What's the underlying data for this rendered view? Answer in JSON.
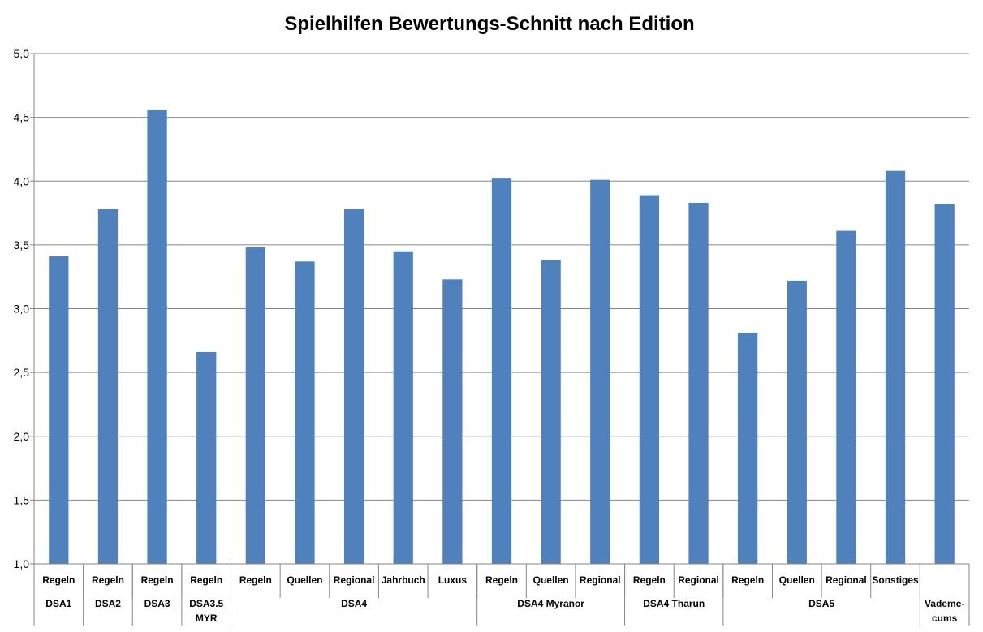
{
  "chart_data": {
    "type": "bar",
    "title": "Spielhilfen Bewertungs-Schnitt nach Edition",
    "xlabel": "",
    "ylabel": "",
    "ylim": [
      1.0,
      5.0
    ],
    "yticks": [
      "1,0",
      "1,5",
      "2,0",
      "2,5",
      "3,0",
      "3,5",
      "4,0",
      "4,5",
      "5,0"
    ],
    "grid": true,
    "legend": "none",
    "bar_color": "#4f81bd",
    "categories": [
      "Regeln",
      "Regeln",
      "Regeln",
      "Regeln",
      "Regeln",
      "Quellen",
      "Regional",
      "Jahrbuch",
      "Luxus",
      "Regeln",
      "Quellen",
      "Regional",
      "Regeln",
      "Regional",
      "Regeln",
      "Quellen",
      "Regional",
      "Sonstiges",
      ""
    ],
    "values": [
      3.41,
      3.78,
      4.56,
      2.66,
      3.48,
      3.37,
      3.78,
      3.45,
      3.23,
      4.02,
      3.38,
      4.01,
      3.89,
      3.83,
      2.81,
      3.22,
      3.61,
      4.08,
      3.82
    ],
    "groups": [
      {
        "label": [
          "DSA1"
        ],
        "span": 1
      },
      {
        "label": [
          "DSA2"
        ],
        "span": 1
      },
      {
        "label": [
          "DSA3"
        ],
        "span": 1
      },
      {
        "label": [
          "DSA3.5",
          "MYR"
        ],
        "span": 1
      },
      {
        "label": [
          "DSA4"
        ],
        "span": 5
      },
      {
        "label": [
          "DSA4 Myranor"
        ],
        "span": 3
      },
      {
        "label": [
          "DSA4 Tharun"
        ],
        "span": 2
      },
      {
        "label": [
          "DSA5"
        ],
        "span": 4
      },
      {
        "label": [
          "Vademe-",
          "cums"
        ],
        "span": 1
      }
    ]
  }
}
